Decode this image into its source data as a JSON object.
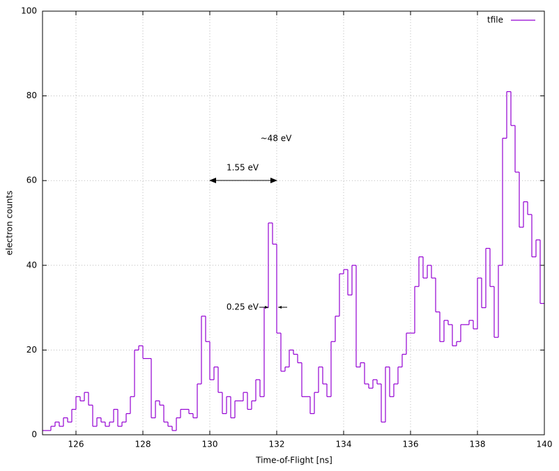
{
  "chart_data": {
    "type": "histogram",
    "xlabel": "Time-of-Flight [ns]",
    "ylabel": "electron counts",
    "bins": [
      125,
      125.125,
      125.25,
      125.375,
      125.5,
      125.625,
      125.75,
      125.875,
      126,
      126.125,
      126.25,
      126.375,
      126.5,
      126.625,
      126.75,
      126.875,
      127,
      127.125,
      127.25,
      127.375,
      127.5,
      127.625,
      127.75,
      127.875,
      128,
      128.125,
      128.25,
      128.375,
      128.5,
      128.625,
      128.75,
      128.875,
      129,
      129.125,
      129.25,
      129.375,
      129.5,
      129.625,
      129.75,
      129.875,
      130,
      130.125,
      130.25,
      130.375,
      130.5,
      130.625,
      130.75,
      130.875,
      131,
      131.125,
      131.25,
      131.375,
      131.5,
      131.625,
      131.75,
      131.875,
      132,
      132.125,
      132.25,
      132.375,
      132.5,
      132.625,
      132.75,
      132.875,
      133,
      133.125,
      133.25,
      133.375,
      133.5,
      133.625,
      133.75,
      133.875,
      134,
      134.125,
      134.25,
      134.375,
      134.5,
      134.625,
      134.75,
      134.875,
      135,
      135.125,
      135.25,
      135.375,
      135.5,
      135.625,
      135.75,
      135.875,
      136,
      136.125,
      136.25,
      136.375,
      136.5,
      136.625,
      136.75,
      136.875,
      137,
      137.125,
      137.25,
      137.375,
      137.5,
      137.625,
      137.75,
      137.875,
      138,
      138.125,
      138.25,
      138.375,
      138.5,
      138.625,
      138.75,
      138.875,
      139,
      139.125,
      139.25,
      139.375,
      139.5,
      139.625,
      139.75,
      139.875,
      140
    ],
    "series": [
      {
        "name": "tfile",
        "color": "#9400d3",
        "values": [
          1,
          1,
          2,
          3,
          2,
          4,
          3,
          6,
          9,
          8,
          10,
          7,
          2,
          4,
          3,
          2,
          3,
          6,
          2,
          3,
          5,
          9,
          20,
          21,
          18,
          18,
          4,
          8,
          7,
          3,
          2,
          1,
          4,
          6,
          6,
          5,
          4,
          12,
          28,
          22,
          13,
          16,
          10,
          5,
          9,
          4,
          8,
          8,
          10,
          6,
          8,
          13,
          9,
          30,
          50,
          45,
          24,
          15,
          16,
          20,
          19,
          17,
          9,
          9,
          5,
          10,
          16,
          12,
          9,
          22,
          28,
          38,
          39,
          33,
          40,
          16,
          17,
          12,
          11,
          13,
          12,
          3,
          16,
          9,
          12,
          16,
          19,
          24,
          24,
          35,
          42,
          37,
          40,
          37,
          29,
          22,
          27,
          26,
          21,
          22,
          26,
          26,
          27,
          25,
          37,
          30,
          44,
          35,
          23,
          40,
          70,
          81,
          73,
          62,
          49,
          55,
          52,
          42,
          46,
          31
        ]
      }
    ],
    "xlim": [
      125,
      140
    ],
    "ylim": [
      0,
      100
    ],
    "xticks": [
      126,
      128,
      130,
      132,
      134,
      136,
      138,
      140
    ],
    "yticks": [
      0,
      20,
      40,
      60,
      80,
      100
    ],
    "grid": true,
    "legend": "top-right",
    "annotations": [
      {
        "text": "~48 eV"
      },
      {
        "text": "1.55 eV"
      },
      {
        "text": "0.25 eV"
      }
    ]
  }
}
